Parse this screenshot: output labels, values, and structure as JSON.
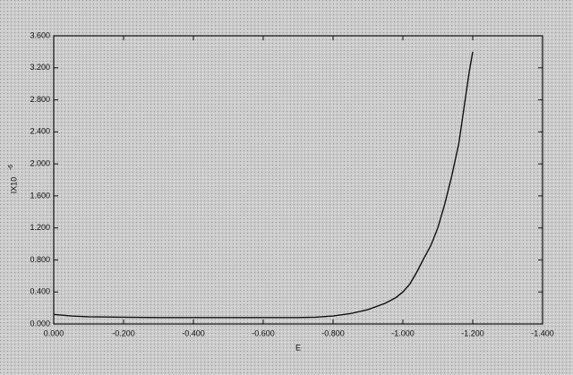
{
  "chart_data": {
    "type": "line",
    "x_label": "E",
    "y_label": "IX10",
    "y_label_exponent": "-6",
    "x": [
      0,
      -0.05,
      -0.1,
      -0.2,
      -0.3,
      -0.4,
      -0.5,
      -0.6,
      -0.7,
      -0.75,
      -0.8,
      -0.85,
      -0.9,
      -0.95,
      -0.98,
      -1.0,
      -1.02,
      -1.04,
      -1.06,
      -1.08,
      -1.1,
      -1.12,
      -1.14,
      -1.16,
      -1.17,
      -1.18,
      -1.19,
      -1.2
    ],
    "series": [
      {
        "color": "#111111",
        "values": [
          0.12,
          0.1,
          0.09,
          0.085,
          0.08,
          0.08,
          0.08,
          0.08,
          0.08,
          0.085,
          0.1,
          0.13,
          0.18,
          0.26,
          0.33,
          0.4,
          0.5,
          0.65,
          0.82,
          0.98,
          1.2,
          1.5,
          1.85,
          2.25,
          2.55,
          2.85,
          3.15,
          3.4
        ]
      }
    ],
    "xlim": [
      0,
      -1.4
    ],
    "xticks": [
      {
        "value": 0,
        "label": "0.000"
      },
      {
        "value": -0.2,
        "label": "-0.200"
      },
      {
        "value": -0.4,
        "label": "-0.400"
      },
      {
        "value": -0.6,
        "label": "-0.600"
      },
      {
        "value": -0.8,
        "label": "-0.800"
      },
      {
        "value": -1.0,
        "label": "-1.000"
      },
      {
        "value": -1.2,
        "label": "-1.200"
      },
      {
        "value": -1.4,
        "label": "-1.400"
      }
    ],
    "ylim": [
      0,
      3.6
    ],
    "yticks": [
      {
        "value": 0,
        "label": "0.000"
      },
      {
        "value": 0.4,
        "label": "0.400"
      },
      {
        "value": 0.8,
        "label": "0.800"
      },
      {
        "value": 1.2,
        "label": "1.200"
      },
      {
        "value": 1.6,
        "label": "1.600"
      },
      {
        "value": 2.0,
        "label": "2.000"
      },
      {
        "value": 2.4,
        "label": "2.400"
      },
      {
        "value": 2.8,
        "label": "2.800"
      },
      {
        "value": 3.2,
        "label": "3.200"
      },
      {
        "value": 3.6,
        "label": "3.600"
      }
    ],
    "grid": false
  }
}
